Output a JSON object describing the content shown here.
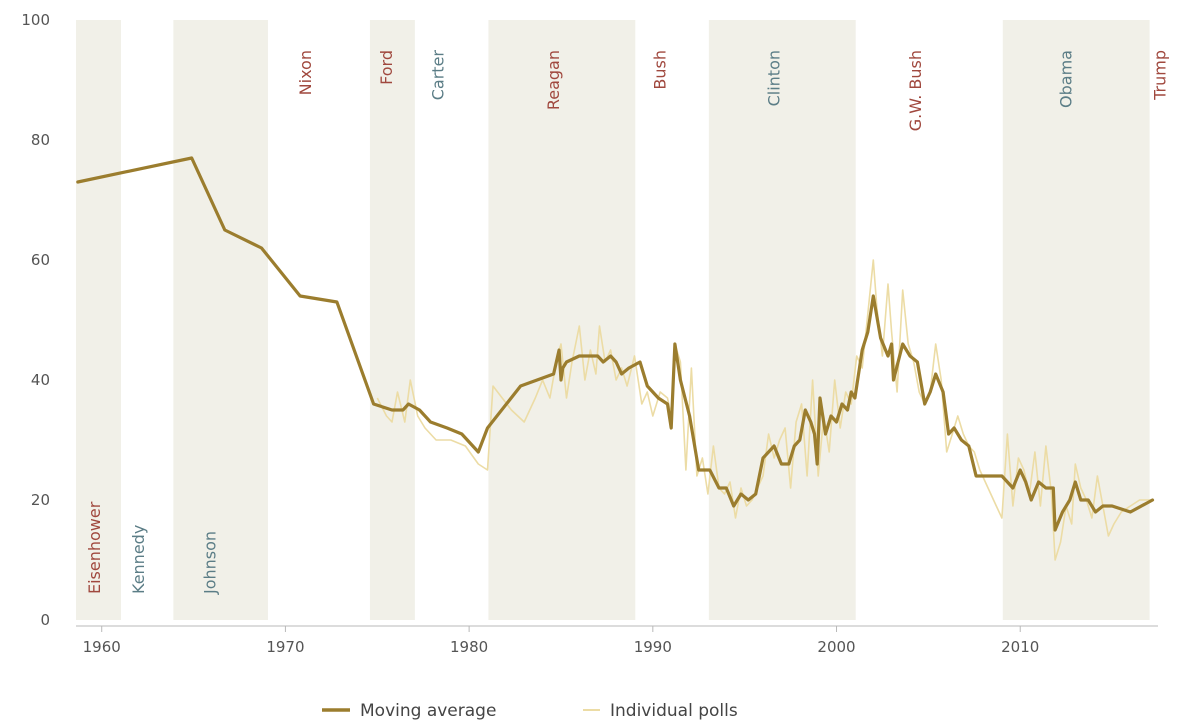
{
  "chart_data": {
    "type": "line",
    "xlim": [
      1958.6,
      2017.5
    ],
    "ylim": [
      0,
      100
    ],
    "x_ticks": [
      1960,
      1970,
      1980,
      1990,
      2000,
      2010
    ],
    "y_ticks": [
      0,
      20,
      40,
      60,
      80,
      100
    ],
    "grid": false,
    "legend_position": "bottom-center",
    "colors": {
      "average": "#9b7d2e",
      "polls": "#ecdca5",
      "shade": "#f1f0e8",
      "red": "#a0483e",
      "blue": "#5b7d86"
    },
    "presidents": [
      {
        "name": "Eisenhower",
        "start": 1958.6,
        "end": 1961.05,
        "party": "R",
        "label_year": 1959.9,
        "label_pos": "bottom"
      },
      {
        "name": "Kennedy",
        "start": 1961.05,
        "end": 1963.9,
        "party": "D",
        "label_year": 1962.3,
        "label_pos": "bottom"
      },
      {
        "name": "Johnson",
        "start": 1963.9,
        "end": 1969.05,
        "party": "D",
        "label_year": 1966.2,
        "label_pos": "bottom"
      },
      {
        "name": "Nixon",
        "start": 1969.05,
        "end": 1974.6,
        "party": "R",
        "label_year": 1971.4,
        "label_pos": "top"
      },
      {
        "name": "Ford",
        "start": 1974.6,
        "end": 1977.05,
        "party": "R",
        "label_year": 1975.8,
        "label_pos": "top"
      },
      {
        "name": "Carter",
        "start": 1977.05,
        "end": 1981.05,
        "party": "D",
        "label_year": 1978.6,
        "label_pos": "top"
      },
      {
        "name": "Reagan",
        "start": 1981.05,
        "end": 1989.05,
        "party": "R",
        "label_year": 1984.9,
        "label_pos": "top"
      },
      {
        "name": "Bush",
        "start": 1989.05,
        "end": 1993.05,
        "party": "R",
        "label_year": 1990.7,
        "label_pos": "top"
      },
      {
        "name": "Clinton",
        "start": 1993.05,
        "end": 2001.05,
        "party": "D",
        "label_year": 1996.9,
        "label_pos": "top"
      },
      {
        "name": "G.W. Bush",
        "start": 2001.05,
        "end": 2009.05,
        "party": "R",
        "label_year": 2004.6,
        "label_pos": "top"
      },
      {
        "name": "Obama",
        "start": 2009.05,
        "end": 2017.05,
        "party": "D",
        "label_year": 2012.8,
        "label_pos": "top"
      },
      {
        "name": "Trump",
        "start": 2017.05,
        "end": 2017.5,
        "party": "R",
        "label_year": 2017.9,
        "label_pos": "top"
      }
    ],
    "series": [
      {
        "name": "Moving average",
        "x": [
          1958.7,
          1964.9,
          1966.7,
          1968.7,
          1970.8,
          1972.8,
          1974.8,
          1975.8,
          1976.0,
          1976.4,
          1976.7,
          1977.3,
          1977.9,
          1978.8,
          1979.6,
          1980.5,
          1981.0,
          1982.8,
          1984.6,
          1984.9,
          1985.0,
          1985.1,
          1985.3,
          1986.0,
          1986.6,
          1987.0,
          1987.3,
          1987.7,
          1988.0,
          1988.3,
          1988.7,
          1989.3,
          1989.7,
          1990.3,
          1990.8,
          1991.0,
          1991.2,
          1991.5,
          1992.0,
          1992.5,
          1993.1,
          1993.6,
          1994.0,
          1994.4,
          1994.8,
          1995.2,
          1995.6,
          1996.0,
          1996.6,
          1997.0,
          1997.4,
          1997.7,
          1998.0,
          1998.3,
          1998.6,
          1998.8,
          1998.95,
          1999.1,
          1999.4,
          1999.7,
          2000.0,
          2000.3,
          2000.6,
          2000.8,
          2001.0,
          2001.4,
          2001.7,
          2002.0,
          2002.4,
          2002.8,
          2003.0,
          2003.1,
          2003.6,
          2004.0,
          2004.4,
          2004.8,
          2005.1,
          2005.4,
          2005.8,
          2006.1,
          2006.4,
          2006.8,
          2007.2,
          2007.6,
          2008.0,
          2008.5,
          2009.0,
          2009.6,
          2010.0,
          2010.3,
          2010.6,
          2011.0,
          2011.4,
          2011.8,
          2011.9,
          2012.3,
          2012.7,
          2013.0,
          2013.3,
          2013.7,
          2014.1,
          2014.5,
          2015.0,
          2016.0,
          2017.2
        ],
        "values": [
          73,
          77,
          65,
          62,
          54,
          53,
          36,
          35,
          35,
          35,
          36,
          35,
          33,
          32,
          31,
          28,
          32,
          39,
          41,
          45,
          40,
          42,
          43,
          44,
          44,
          44,
          43,
          44,
          43,
          41,
          42,
          43,
          39,
          37,
          36,
          32,
          46,
          40,
          34,
          25,
          25,
          22,
          22,
          19,
          21,
          20,
          21,
          27,
          29,
          26,
          26,
          29,
          30,
          35,
          33,
          31,
          26,
          37,
          31,
          34,
          33,
          36,
          35,
          38,
          37,
          45,
          48,
          54,
          47,
          44,
          46,
          40,
          46,
          44,
          43,
          36,
          38,
          41,
          38,
          31,
          32,
          30,
          29,
          24,
          24,
          24,
          24,
          22,
          25,
          23,
          20,
          23,
          22,
          22,
          15,
          18,
          20,
          23,
          20,
          20,
          18,
          19,
          19,
          18,
          20
        ]
      },
      {
        "name": "Individual polls",
        "x": [
          1975.0,
          1975.5,
          1975.8,
          1976.1,
          1976.5,
          1976.8,
          1977.2,
          1977.6,
          1978.2,
          1979.0,
          1979.8,
          1980.5,
          1981.0,
          1981.3,
          1981.8,
          1982.3,
          1983.0,
          1983.6,
          1984.0,
          1984.4,
          1984.8,
          1985.0,
          1985.3,
          1985.6,
          1986.0,
          1986.3,
          1986.6,
          1986.9,
          1987.1,
          1987.4,
          1987.7,
          1988.0,
          1988.3,
          1988.6,
          1989.0,
          1989.4,
          1989.7,
          1990.0,
          1990.4,
          1990.8,
          1991.0,
          1991.2,
          1991.5,
          1991.8,
          1992.1,
          1992.4,
          1992.7,
          1993.0,
          1993.3,
          1993.6,
          1993.9,
          1994.2,
          1994.5,
          1994.8,
          1995.1,
          1995.4,
          1995.7,
          1996.0,
          1996.3,
          1996.6,
          1996.9,
          1997.2,
          1997.5,
          1997.8,
          1998.1,
          1998.4,
          1998.7,
          1999.0,
          1999.3,
          1999.6,
          1999.9,
          2000.2,
          2000.5,
          2000.8,
          2001.1,
          2001.4,
          2001.7,
          2002.0,
          2002.2,
          2002.5,
          2002.8,
          2003.0,
          2003.3,
          2003.6,
          2003.9,
          2004.2,
          2004.5,
          2004.8,
          2005.1,
          2005.4,
          2005.7,
          2006.0,
          2006.3,
          2006.6,
          2006.9,
          2007.2,
          2007.5,
          2007.8,
          2008.1,
          2008.4,
          2008.7,
          2009.0,
          2009.3,
          2009.6,
          2009.9,
          2010.2,
          2010.5,
          2010.8,
          2011.1,
          2011.4,
          2011.7,
          2011.9,
          2012.2,
          2012.5,
          2012.8,
          2013.0,
          2013.3,
          2013.6,
          2013.9,
          2014.2,
          2014.5,
          2014.8,
          2015.1,
          2015.5,
          2016.0,
          2016.5,
          2017.1
        ],
        "values": [
          37,
          34,
          33,
          38,
          33,
          40,
          34,
          32,
          30,
          30,
          29,
          26,
          25,
          39,
          37,
          35,
          33,
          37,
          40,
          37,
          44,
          46,
          37,
          43,
          49,
          40,
          45,
          41,
          49,
          43,
          45,
          40,
          42,
          39,
          44,
          36,
          38,
          34,
          38,
          37,
          34,
          46,
          43,
          25,
          42,
          24,
          27,
          21,
          29,
          22,
          21,
          23,
          17,
          22,
          19,
          20,
          22,
          24,
          31,
          27,
          30,
          32,
          22,
          33,
          36,
          24,
          40,
          24,
          34,
          28,
          40,
          32,
          38,
          36,
          44,
          42,
          51,
          60,
          52,
          44,
          56,
          48,
          38,
          55,
          46,
          43,
          38,
          36,
          38,
          46,
          40,
          28,
          31,
          34,
          31,
          29,
          28,
          25,
          23,
          21,
          19,
          17,
          31,
          19,
          27,
          25,
          21,
          28,
          19,
          29,
          21,
          10,
          13,
          19,
          16,
          26,
          22,
          20,
          17,
          24,
          19,
          14,
          16,
          18,
          19,
          20,
          20
        ]
      }
    ],
    "legend": [
      {
        "label": "Moving average",
        "series": 0
      },
      {
        "label": "Individual polls",
        "series": 1
      }
    ]
  }
}
